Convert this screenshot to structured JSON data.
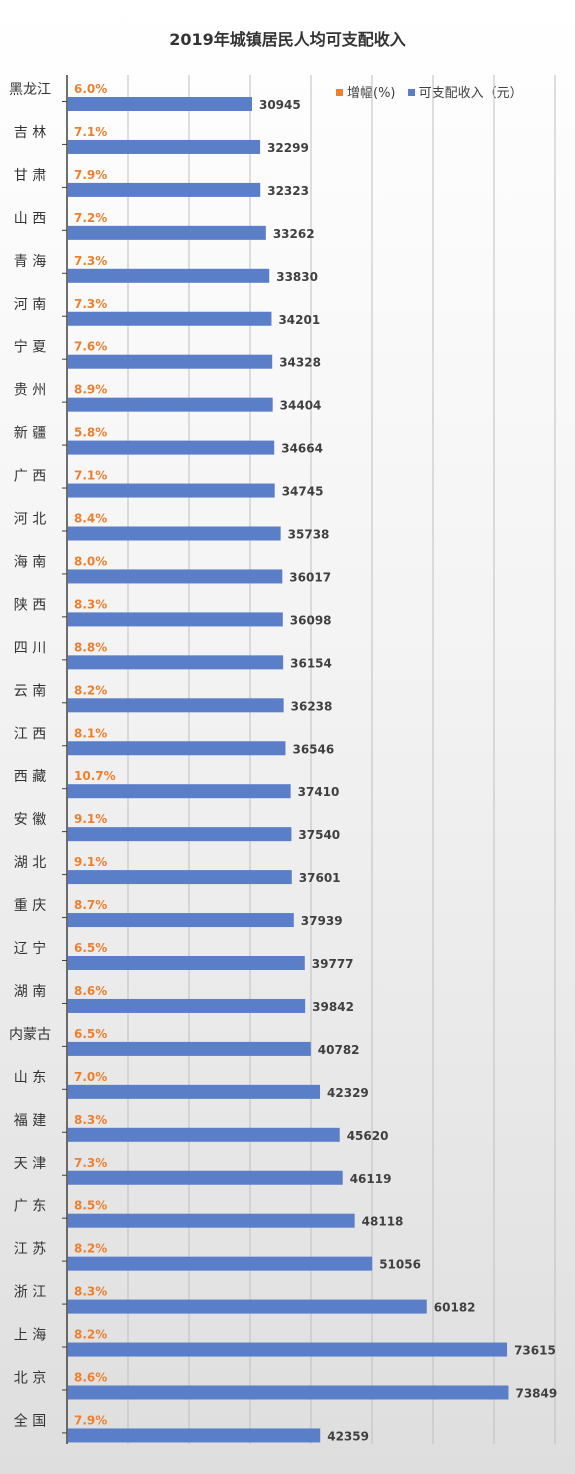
{
  "chart_data": {
    "type": "bar",
    "title": "2019年城镇居民人均可支配收入",
    "legend": {
      "placement": "top-right",
      "growth_label": "增幅(%)",
      "income_label": "可支配收入（元）"
    },
    "colors": {
      "income": "#5b7ec9",
      "growth": "#ed8030",
      "grid": "#bfbfbf",
      "axis": "#404040"
    },
    "xlim": [
      0,
      80000
    ],
    "grid": true,
    "categories": [
      "黑龙江",
      "吉 林",
      "甘 肃",
      "山 西",
      "青 海",
      "河 南",
      "宁 夏",
      "贵 州",
      "新 疆",
      "广 西",
      "河 北",
      "海 南",
      "陕 西",
      "四 川",
      "云 南",
      "江 西",
      "西 藏",
      "安 徽",
      "湖 北",
      "重 庆",
      "辽 宁",
      "湖 南",
      "内蒙古",
      "山 东",
      "福 建",
      "天 津",
      "广 东",
      "江 苏",
      "浙 江",
      "上 海",
      "北 京",
      "全 国"
    ],
    "series": [
      {
        "name": "可支配收入（元）",
        "values": [
          30945,
          32299,
          32323,
          33262,
          33830,
          34201,
          34328,
          34404,
          34664,
          34745,
          35738,
          36017,
          36098,
          36154,
          36238,
          36546,
          37410,
          37540,
          37601,
          37939,
          39777,
          39842,
          40782,
          42329,
          45620,
          46119,
          48118,
          51056,
          60182,
          73615,
          73849,
          42359
        ]
      },
      {
        "name": "增幅(%)",
        "labels": [
          "6.0%",
          "7.1%",
          "7.9%",
          "7.2%",
          "7.3%",
          "7.3%",
          "7.6%",
          "8.9%",
          "5.8%",
          "7.1%",
          "8.4%",
          "8.0%",
          "8.3%",
          "8.8%",
          "8.2%",
          "8.1%",
          "10.7%",
          "9.1%",
          "9.1%",
          "8.7%",
          "6.5%",
          "8.6%",
          "6.5%",
          "7.0%",
          "8.3%",
          "7.3%",
          "8.5%",
          "8.2%",
          "8.3%",
          "8.2%",
          "8.6%",
          "7.9%"
        ]
      }
    ]
  }
}
